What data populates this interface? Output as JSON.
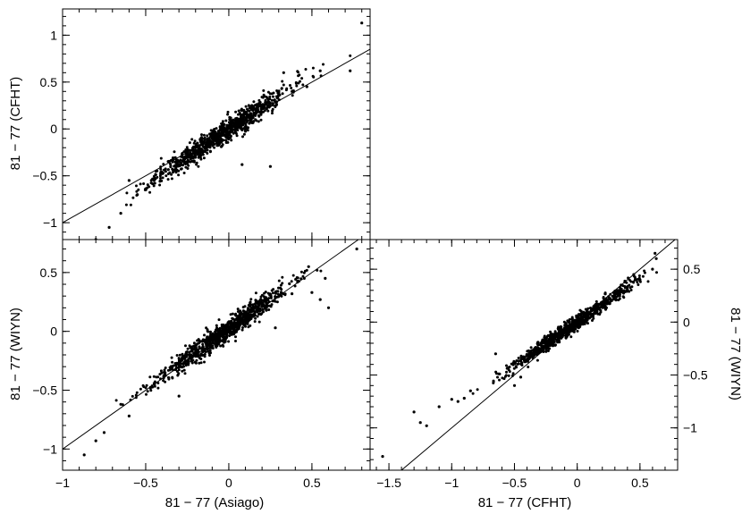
{
  "chart_data": [
    {
      "type": "scatter",
      "panel": "top-left",
      "xlabel": "",
      "ylabel": "81 − 77 (CFHT)",
      "xlim": [
        -1,
        0.85
      ],
      "ylim": [
        -1.18,
        1.28
      ],
      "xticks": [
        -1,
        -0.5,
        0,
        0.5
      ],
      "yticks": [
        -1,
        -0.5,
        0,
        0.5,
        1
      ],
      "yticklabels": [
        "−1",
        "−0.5",
        "0",
        "0.5",
        "1"
      ],
      "show_xticklabels": false,
      "yaxis_side": "left",
      "line": [
        [
          -1,
          -1
        ],
        [
          0.85,
          0.85
        ]
      ],
      "cloud": {
        "n": 900,
        "xmean": -0.05,
        "xsd": 0.2,
        "slope": 1.2,
        "intercept": 0.0,
        "noise": 0.06,
        "seed": 11
      },
      "outliers": [
        [
          0.8,
          1.13
        ],
        [
          0.73,
          0.62
        ],
        [
          0.55,
          0.62
        ],
        [
          0.47,
          0.45
        ],
        [
          0.38,
          0.4
        ],
        [
          0.25,
          -0.4
        ],
        [
          0.08,
          -0.38
        ],
        [
          -0.72,
          -1.05
        ],
        [
          -0.8,
          -1.18
        ],
        [
          -0.65,
          -0.9
        ],
        [
          -0.6,
          -0.55
        ],
        [
          -0.55,
          -0.7
        ],
        [
          -0.45,
          -0.55
        ],
        [
          0.33,
          0.6
        ]
      ]
    },
    {
      "type": "scatter",
      "panel": "bottom-left",
      "xlabel": "81 − 77 (Asiago)",
      "ylabel": "81 − 77 (WIYN)",
      "xlim": [
        -1,
        0.85
      ],
      "ylim": [
        -1.18,
        0.78
      ],
      "xticks": [
        -1,
        -0.5,
        0,
        0.5
      ],
      "xticklabels": [
        "−1",
        "−0.5",
        "0",
        "0.5"
      ],
      "yticks": [
        -1,
        -0.5,
        0,
        0.5
      ],
      "yticklabels": [
        "−1",
        "−0.5",
        "0",
        "0.5"
      ],
      "show_xticklabels": true,
      "yaxis_side": "left",
      "line": [
        [
          -1,
          -1
        ],
        [
          0.78,
          0.78
        ]
      ],
      "cloud": {
        "n": 900,
        "xmean": -0.05,
        "xsd": 0.2,
        "slope": 1.0,
        "intercept": 0.02,
        "noise": 0.045,
        "seed": 23
      },
      "outliers": [
        [
          0.77,
          0.7
        ],
        [
          0.58,
          0.45
        ],
        [
          0.5,
          0.33
        ],
        [
          0.55,
          0.27
        ],
        [
          0.48,
          0.55
        ],
        [
          0.38,
          0.32
        ],
        [
          0.28,
          0.03
        ],
        [
          -0.87,
          -1.05
        ],
        [
          -0.75,
          -0.86
        ],
        [
          -0.8,
          -0.93
        ],
        [
          -0.6,
          -0.72
        ],
        [
          -0.65,
          -0.62
        ],
        [
          -0.3,
          -0.55
        ],
        [
          0.6,
          0.2
        ]
      ]
    },
    {
      "type": "scatter",
      "panel": "bottom-right",
      "xlabel": "81 − 77 (CFHT)",
      "ylabel": "81 − 77 (WIYN)",
      "xlim": [
        -1.65,
        0.8
      ],
      "ylim": [
        -1.4,
        0.78
      ],
      "xticks": [
        -1.5,
        -1,
        -0.5,
        0,
        0.5
      ],
      "xticklabels": [
        "−1.5",
        "−1",
        "−0.5",
        "0",
        "0.5"
      ],
      "yticks": [
        -1,
        -0.5,
        0,
        0.5
      ],
      "yticklabels": [
        "−1",
        "−0.5",
        "0",
        "0.5"
      ],
      "show_xticklabels": true,
      "yaxis_side": "right",
      "line": [
        [
          -1.4,
          -1.4
        ],
        [
          0.78,
          0.78
        ]
      ],
      "cloud": {
        "n": 850,
        "xmean": -0.05,
        "xsd": 0.24,
        "slope": 0.82,
        "intercept": 0.0,
        "noise": 0.035,
        "seed": 37
      },
      "outliers": [
        [
          -1.55,
          -1.27
        ],
        [
          -1.3,
          -0.85
        ],
        [
          -1.2,
          -0.98
        ],
        [
          -1.25,
          -0.95
        ],
        [
          -1.1,
          -0.8
        ],
        [
          -1.0,
          -0.73
        ],
        [
          -0.95,
          -0.75
        ],
        [
          -0.9,
          -0.72
        ],
        [
          -0.85,
          -0.65
        ],
        [
          -0.65,
          -0.3
        ],
        [
          -0.45,
          -0.52
        ],
        [
          -0.5,
          -0.6
        ],
        [
          0.62,
          0.65
        ],
        [
          0.63,
          0.6
        ],
        [
          0.6,
          0.5
        ],
        [
          0.45,
          0.45
        ],
        [
          0.5,
          0.4
        ],
        [
          0.35,
          0.35
        ]
      ]
    }
  ]
}
